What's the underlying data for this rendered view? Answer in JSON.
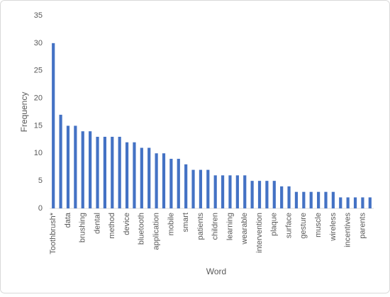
{
  "chart_data": {
    "type": "bar",
    "x_label": "Word",
    "y_label": "Frequency",
    "categories": [
      "Toothbrush*",
      null,
      "data",
      null,
      "brushing",
      null,
      "dental",
      null,
      "method",
      null,
      "device",
      null,
      "bluetooth",
      null,
      "application",
      null,
      "mobile",
      null,
      "smart",
      null,
      "patients",
      null,
      "children",
      null,
      "learning",
      null,
      "wearable",
      null,
      "intervention",
      null,
      "plaque",
      null,
      "surface",
      null,
      "gesture",
      null,
      "muscle",
      null,
      "wireless",
      null,
      "incentives",
      null,
      "parents",
      null
    ],
    "values": [
      30,
      17,
      15,
      15,
      14,
      14,
      13,
      13,
      13,
      13,
      12,
      12,
      11,
      11,
      10,
      10,
      9,
      9,
      8,
      7,
      7,
      7,
      6,
      6,
      6,
      6,
      6,
      5,
      5,
      5,
      5,
      4,
      4,
      3,
      3,
      3,
      3,
      3,
      3,
      2,
      2,
      2,
      2,
      2
    ],
    "color": "#4472c4",
    "ylim": [
      0,
      35
    ],
    "yticks": [
      0,
      5,
      10,
      15,
      20,
      25,
      30,
      35
    ],
    "grid": false
  }
}
